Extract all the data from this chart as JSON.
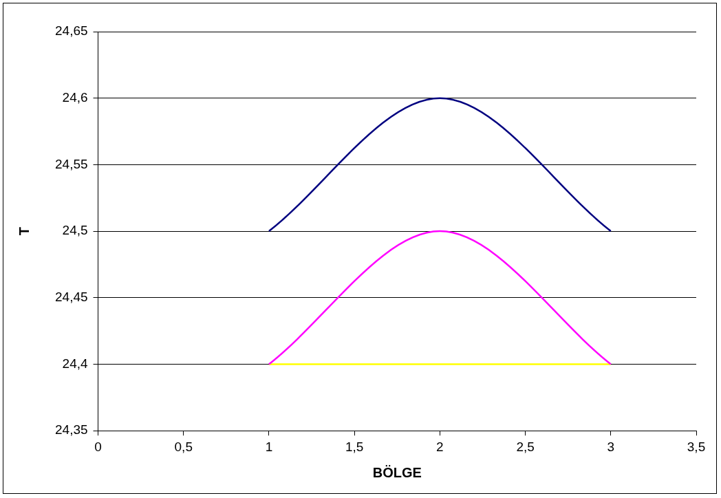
{
  "chart_data": {
    "type": "line",
    "xlabel": "BÖLGE",
    "ylabel": "T",
    "x": [
      1,
      2,
      3
    ],
    "series": [
      {
        "color": "#000080",
        "values": [
          24.5,
          24.6,
          24.5
        ]
      },
      {
        "color": "#ff00ff",
        "values": [
          24.4,
          24.5,
          24.4
        ]
      },
      {
        "color": "#ffff00",
        "values": [
          24.4,
          24.4,
          24.4
        ]
      }
    ],
    "xlim": [
      0,
      3.5
    ],
    "xticks": [
      0,
      {
        "value": 0.5,
        "label": "0,5"
      },
      1,
      {
        "value": 1.5,
        "label": "1,5"
      },
      2,
      {
        "value": 2.5,
        "label": "2,5"
      },
      3,
      {
        "value": 3.5,
        "label": "3,5"
      }
    ],
    "ylim": [
      24.35,
      24.65
    ],
    "yticks": [
      {
        "value": 24.35,
        "label": "24,35"
      },
      {
        "value": 24.4,
        "label": "24,4"
      },
      {
        "value": 24.45,
        "label": "24,45"
      },
      {
        "value": 24.5,
        "label": "24,5"
      },
      {
        "value": 24.55,
        "label": "24,55"
      },
      {
        "value": 24.6,
        "label": "24,6"
      },
      {
        "value": 24.65,
        "label": "24,65"
      }
    ],
    "grid": "y",
    "legend": false,
    "marker": "none",
    "line_style": "solid"
  }
}
